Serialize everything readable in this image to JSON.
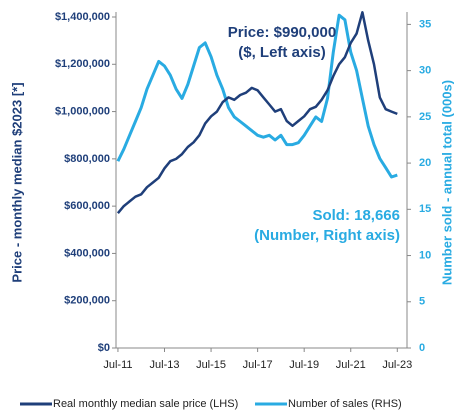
{
  "chart_data": {
    "type": "line",
    "y_label": "Price - monthly median $2023 [*]",
    "y2_label": "Number sold - annual total (000s)",
    "annotations": [
      {
        "lines": [
          "Price: $990,000",
          "($, Left axis)"
        ],
        "color": "#1f3f7a"
      },
      {
        "lines": [
          "Sold: 18,666",
          "(Number, Right axis)"
        ],
        "color": "#29abe2"
      }
    ],
    "x": [
      "2011-07",
      "2011-10",
      "2012-01",
      "2012-04",
      "2012-07",
      "2012-10",
      "2013-01",
      "2013-04",
      "2013-07",
      "2013-10",
      "2014-01",
      "2014-04",
      "2014-07",
      "2014-10",
      "2015-01",
      "2015-04",
      "2015-07",
      "2015-10",
      "2016-01",
      "2016-04",
      "2016-07",
      "2016-10",
      "2017-01",
      "2017-04",
      "2017-07",
      "2017-10",
      "2018-01",
      "2018-04",
      "2018-07",
      "2018-10",
      "2019-01",
      "2019-04",
      "2019-07",
      "2019-10",
      "2020-01",
      "2020-04",
      "2020-07",
      "2020-10",
      "2021-01",
      "2021-04",
      "2021-07",
      "2021-10",
      "2022-01",
      "2022-04",
      "2022-07",
      "2022-10",
      "2023-01",
      "2023-04",
      "2023-07"
    ],
    "series": [
      {
        "name": "Real monthly median sale price (LHS)",
        "color": "#1f3f7a",
        "values": [
          570000,
          600000,
          620000,
          640000,
          650000,
          680000,
          700000,
          720000,
          760000,
          790000,
          800000,
          820000,
          850000,
          870000,
          900000,
          950000,
          980000,
          1000000,
          1040000,
          1060000,
          1050000,
          1070000,
          1080000,
          1100000,
          1090000,
          1060000,
          1030000,
          1000000,
          1010000,
          960000,
          940000,
          960000,
          980000,
          1010000,
          1020000,
          1050000,
          1090000,
          1150000,
          1200000,
          1230000,
          1290000,
          1330000,
          1420000,
          1300000,
          1200000,
          1060000,
          1010000,
          1000000,
          990000
        ]
      },
      {
        "name": "Number of sales (RHS)",
        "color": "#29abe2",
        "axis": "y2",
        "values": [
          20.2,
          21.5,
          23,
          24.5,
          26,
          28,
          29.5,
          31,
          30.5,
          29.5,
          28,
          27,
          28.5,
          30.5,
          32.5,
          33,
          31.5,
          29.5,
          28,
          26,
          25,
          24.5,
          24,
          23.5,
          23,
          22.8,
          23,
          22.5,
          23,
          22,
          22,
          22.2,
          23,
          24,
          25,
          24.5,
          27,
          32,
          36,
          35.5,
          32,
          30,
          27,
          24,
          22,
          20.5,
          19.5,
          18.5,
          18.7
        ]
      }
    ],
    "xlim": [
      "2011-06",
      "2023-12"
    ],
    "xticks": [
      {
        "value": "2011-07",
        "label": "Jul-11"
      },
      {
        "value": "2013-07",
        "label": "Jul-13"
      },
      {
        "value": "2015-07",
        "label": "Jul-15"
      },
      {
        "value": "2017-07",
        "label": "Jul-17"
      },
      {
        "value": "2019-07",
        "label": "Jul-19"
      },
      {
        "value": "2021-07",
        "label": "Jul-21"
      },
      {
        "value": "2023-07",
        "label": "Jul-23"
      }
    ],
    "ylim": [
      0,
      1400000
    ],
    "yticks": [
      {
        "value": 0,
        "label": "$0"
      },
      {
        "value": 200000,
        "label": "$200,000"
      },
      {
        "value": 400000,
        "label": "$400,000"
      },
      {
        "value": 600000,
        "label": "$600,000"
      },
      {
        "value": 800000,
        "label": "$800,000"
      },
      {
        "value": 1000000,
        "label": "$1,000,000"
      },
      {
        "value": 1200000,
        "label": "$1,200,000"
      },
      {
        "value": 1400000,
        "label": "$1,400,000"
      }
    ],
    "y2lim": [
      0,
      35.8
    ],
    "y2ticks": [
      0,
      5,
      10,
      15,
      20,
      25,
      30,
      35
    ]
  }
}
